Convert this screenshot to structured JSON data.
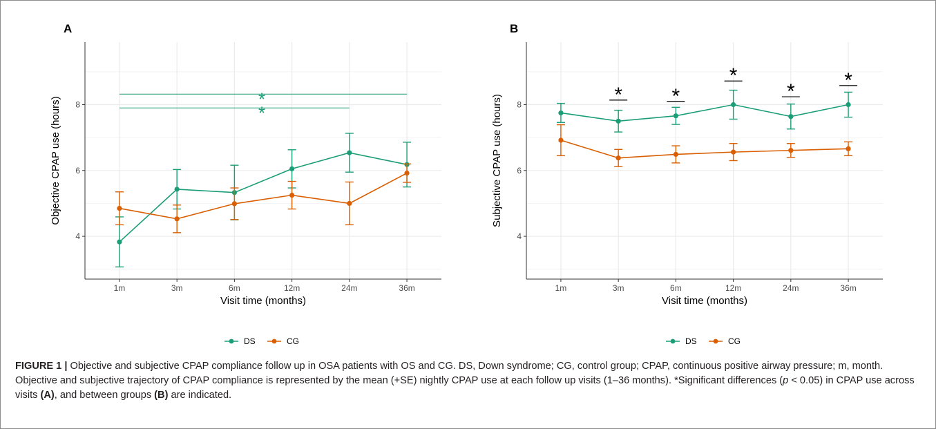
{
  "figure": {
    "caption_label": "FIGURE 1 |",
    "caption_text": " Objective and subjective CPAP compliance follow up in OSA patients with OS and CG. DS, Down syndrome; CG, control group; CPAP, continuous positive airway pressure; m, month. Objective and subjective trajectory of CPAP compliance is represented by the mean (+SE) nightly CPAP use at each follow up visits (1–36 months). *Significant differences (",
    "caption_p": "p",
    "caption_text2": " < 0.05) in CPAP use across visits ",
    "caption_A": "(A)",
    "caption_text3": ", and between groups ",
    "caption_B": "(B)",
    "caption_text4": " are indicated."
  },
  "colors": {
    "DS": "#1b9e77",
    "CG": "#d95f02",
    "grid": "#ebebeb",
    "axis": "#333333"
  },
  "chart_data": [
    {
      "panel_label": "A",
      "type": "line",
      "categories": [
        "1m",
        "3m",
        "6m",
        "12m",
        "24m",
        "36m"
      ],
      "xlabel": "Visit time (months)",
      "ylabel": "Objective CPAP use  (hours)",
      "ylim": [
        2.7,
        9.9
      ],
      "yticks": [
        4,
        6,
        8
      ],
      "grid": true,
      "legend": "bottom",
      "series": [
        {
          "name": "DS",
          "values": [
            3.83,
            5.43,
            5.33,
            6.05,
            6.54,
            6.18
          ],
          "se": [
            0.76,
            0.6,
            0.83,
            0.58,
            0.59,
            0.68
          ]
        },
        {
          "name": "CG",
          "values": [
            4.85,
            4.53,
            4.99,
            5.25,
            5.0,
            5.92
          ],
          "se": [
            0.5,
            0.42,
            0.48,
            0.42,
            0.65,
            0.28
          ]
        }
      ],
      "annotations": [
        {
          "text": "*",
          "from": "1m",
          "to": "36m",
          "y": 8.32,
          "color": "DS"
        },
        {
          "text": "*",
          "from": "1m",
          "to": "24m",
          "y": 7.9,
          "color": "DS"
        }
      ]
    },
    {
      "panel_label": "B",
      "type": "line",
      "categories": [
        "1m",
        "3m",
        "6m",
        "12m",
        "24m",
        "36m"
      ],
      "xlabel": "Visit time (months)",
      "ylabel": "Subjective CPAP use (hours)",
      "ylim": [
        2.7,
        9.9
      ],
      "yticks": [
        4,
        6,
        8
      ],
      "grid": true,
      "legend": "bottom",
      "series": [
        {
          "name": "DS",
          "values": [
            7.75,
            7.5,
            7.66,
            8.0,
            7.64,
            8.0
          ],
          "se": [
            0.29,
            0.33,
            0.26,
            0.44,
            0.38,
            0.38
          ]
        },
        {
          "name": "CG",
          "values": [
            6.92,
            6.38,
            6.49,
            6.56,
            6.61,
            6.66
          ],
          "se": [
            0.47,
            0.26,
            0.26,
            0.26,
            0.21,
            0.21
          ]
        }
      ],
      "annotations": [
        {
          "text": "*",
          "at": "3m",
          "y": 8.14
        },
        {
          "text": "*",
          "at": "6m",
          "y": 8.1
        },
        {
          "text": "*",
          "at": "12m",
          "y": 8.72
        },
        {
          "text": "*",
          "at": "24m",
          "y": 8.24
        },
        {
          "text": "*",
          "at": "36m",
          "y": 8.58
        }
      ]
    }
  ]
}
